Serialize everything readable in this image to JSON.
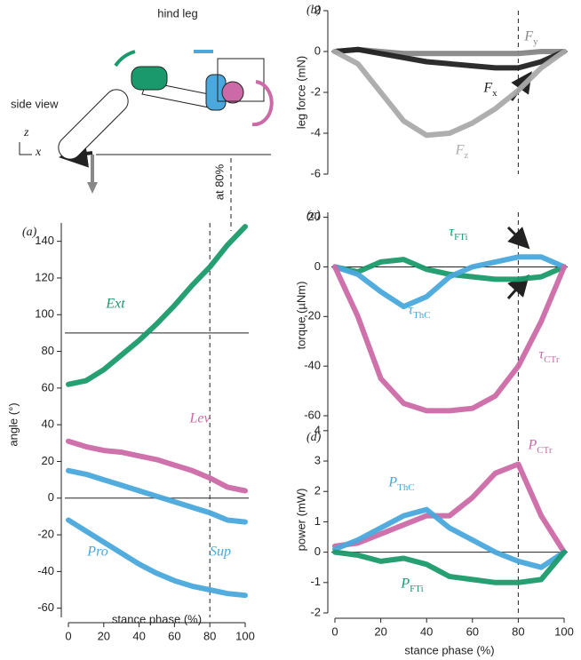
{
  "diagram": {
    "title": "hind leg",
    "view_label": "side view",
    "axis_z": "z",
    "axis_x": "x",
    "marker_label": "at 80%"
  },
  "chart_data": [
    {
      "type": "line",
      "panel": "(a)",
      "ylabel": "angle (°)",
      "xlabel": "stance phase (%)",
      "x": [
        0,
        10,
        20,
        30,
        40,
        50,
        60,
        70,
        80,
        90,
        100
      ],
      "xlim": [
        0,
        100
      ],
      "xticks": [
        0,
        20,
        40,
        60,
        80,
        100
      ],
      "ylim": [
        -65,
        150
      ],
      "yticks": [
        -60,
        -40,
        -20,
        0,
        20,
        40,
        60,
        80,
        100,
        120,
        140
      ],
      "hlines": [
        0,
        90
      ],
      "vline": 80,
      "series": [
        {
          "name": "Ext",
          "color": "#1a9a6c",
          "values": [
            62,
            64,
            70,
            78,
            86,
            95,
            105,
            116,
            126,
            138,
            148
          ]
        },
        {
          "name": "Lev",
          "color": "#cc6aa8",
          "values": [
            31,
            28,
            26,
            25,
            23,
            21,
            18,
            15,
            11,
            6,
            4
          ]
        },
        {
          "name": "Pro",
          "color": "#4aa8dc",
          "values": [
            -12,
            -18,
            -24,
            -30,
            -36,
            -41,
            -45,
            -48,
            -50,
            -52,
            -53
          ]
        },
        {
          "name": "Sup",
          "color": "#4aa8dc",
          "values": [
            15,
            13,
            10,
            7,
            4,
            1,
            -2,
            -5,
            -8,
            -12,
            -13
          ]
        }
      ]
    },
    {
      "type": "line",
      "panel": "(b)",
      "ylabel": "leg force (mN)",
      "x": [
        0,
        10,
        20,
        30,
        40,
        50,
        60,
        70,
        80,
        90,
        100
      ],
      "xlim": [
        0,
        100
      ],
      "ylim": [
        -6,
        2
      ],
      "yticks": [
        -6,
        -4,
        -2,
        0,
        2
      ],
      "hlines": [
        0
      ],
      "vline": 80,
      "series": [
        {
          "name": "Fy",
          "color": "#888888",
          "values": [
            0,
            0.1,
            0,
            -0.1,
            -0.1,
            -0.1,
            -0.1,
            -0.1,
            -0.1,
            0,
            0
          ]
        },
        {
          "name": "Fx",
          "color": "#222222",
          "values": [
            0,
            0.1,
            -0.1,
            -0.3,
            -0.5,
            -0.6,
            -0.7,
            -0.8,
            -0.8,
            -0.5,
            0
          ]
        },
        {
          "name": "Fz",
          "color": "#aaaaaa",
          "values": [
            0,
            -0.6,
            -2,
            -3.4,
            -4.1,
            -4,
            -3.5,
            -2.8,
            -1.9,
            -0.8,
            0
          ]
        }
      ]
    },
    {
      "type": "line",
      "panel": "(c)",
      "ylabel": "torque (µNm)",
      "x": [
        0,
        10,
        20,
        30,
        40,
        50,
        60,
        70,
        80,
        90,
        100
      ],
      "xlim": [
        0,
        100
      ],
      "ylim": [
        -65,
        22
      ],
      "yticks": [
        -60,
        -40,
        -20,
        0,
        20
      ],
      "hlines": [
        0
      ],
      "vline": 80,
      "series": [
        {
          "name": "τFTi",
          "color": "#1a9a6c",
          "values": [
            0,
            -2,
            2,
            3,
            -1,
            -3,
            -4,
            -5,
            -5,
            -4,
            0
          ]
        },
        {
          "name": "τThC",
          "color": "#4aa8dc",
          "values": [
            0,
            -3,
            -10,
            -16,
            -12,
            -4,
            0,
            2,
            4,
            4,
            0
          ]
        },
        {
          "name": "τCTr",
          "color": "#cc6aa8",
          "values": [
            0,
            -20,
            -45,
            -55,
            -58,
            -58,
            -57,
            -52,
            -40,
            -22,
            0
          ]
        }
      ]
    },
    {
      "type": "line",
      "panel": "(d)",
      "ylabel": "power (mW)",
      "xlabel": "stance phase (%)",
      "x": [
        0,
        10,
        20,
        30,
        40,
        50,
        60,
        70,
        80,
        90,
        100
      ],
      "xlim": [
        0,
        100
      ],
      "xticks": [
        0,
        20,
        40,
        60,
        80,
        100
      ],
      "ylim": [
        -2,
        4.2
      ],
      "yticks": [
        -2,
        -1,
        0,
        1,
        2,
        3,
        4
      ],
      "hlines": [
        0
      ],
      "vline": 80,
      "series": [
        {
          "name": "PCTr",
          "color": "#cc6aa8",
          "values": [
            0.2,
            0.3,
            0.6,
            0.9,
            1.2,
            1.2,
            1.8,
            2.6,
            2.9,
            1.2,
            0
          ]
        },
        {
          "name": "PThC",
          "color": "#4aa8dc",
          "values": [
            0.1,
            0.4,
            0.8,
            1.2,
            1.4,
            0.8,
            0.4,
            0,
            -0.3,
            -0.5,
            0
          ]
        },
        {
          "name": "PFTi",
          "color": "#1a9a6c",
          "values": [
            0,
            -0.1,
            -0.3,
            -0.2,
            -0.4,
            -0.8,
            -0.9,
            -1,
            -1,
            -0.9,
            0
          ]
        }
      ]
    }
  ]
}
